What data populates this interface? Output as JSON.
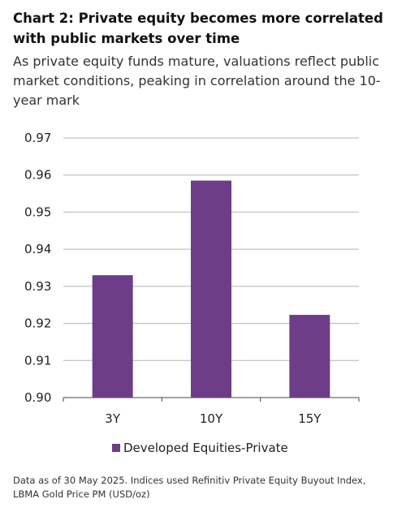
{
  "chart_title": "Chart 2:  Private equity becomes more correlated with public markets over time",
  "chart_subtitle": "As private equity funds mature, valuations reflect public market conditions, peaking in correlation around the 10-year mark",
  "footnote": "Data as of 30 May 2025. Indices used Refinitiv Private Equity Buyout Index, LBMA Gold Price PM (USD/oz)",
  "chart_data": {
    "type": "bar",
    "title": "Chart 2:  Private equity becomes more correlated with public markets over time",
    "subtitle": "As private equity funds mature, valuations reflect public market conditions, peaking in correlation around the 10-year mark",
    "categories": [
      "3Y",
      "10Y",
      "15Y"
    ],
    "series": [
      {
        "name": "Developed Equities-Private",
        "values": [
          0.933,
          0.9585,
          0.9223
        ],
        "color": "#6e3d8a"
      }
    ],
    "ylim": [
      0.9,
      0.97
    ],
    "yticks": [
      "0.97",
      "0.96",
      "0.95",
      "0.94",
      "0.93",
      "0.92",
      "0.91",
      "0.90"
    ],
    "xlabel": "",
    "ylabel": "",
    "grid": true,
    "legend_position": "bottom"
  }
}
